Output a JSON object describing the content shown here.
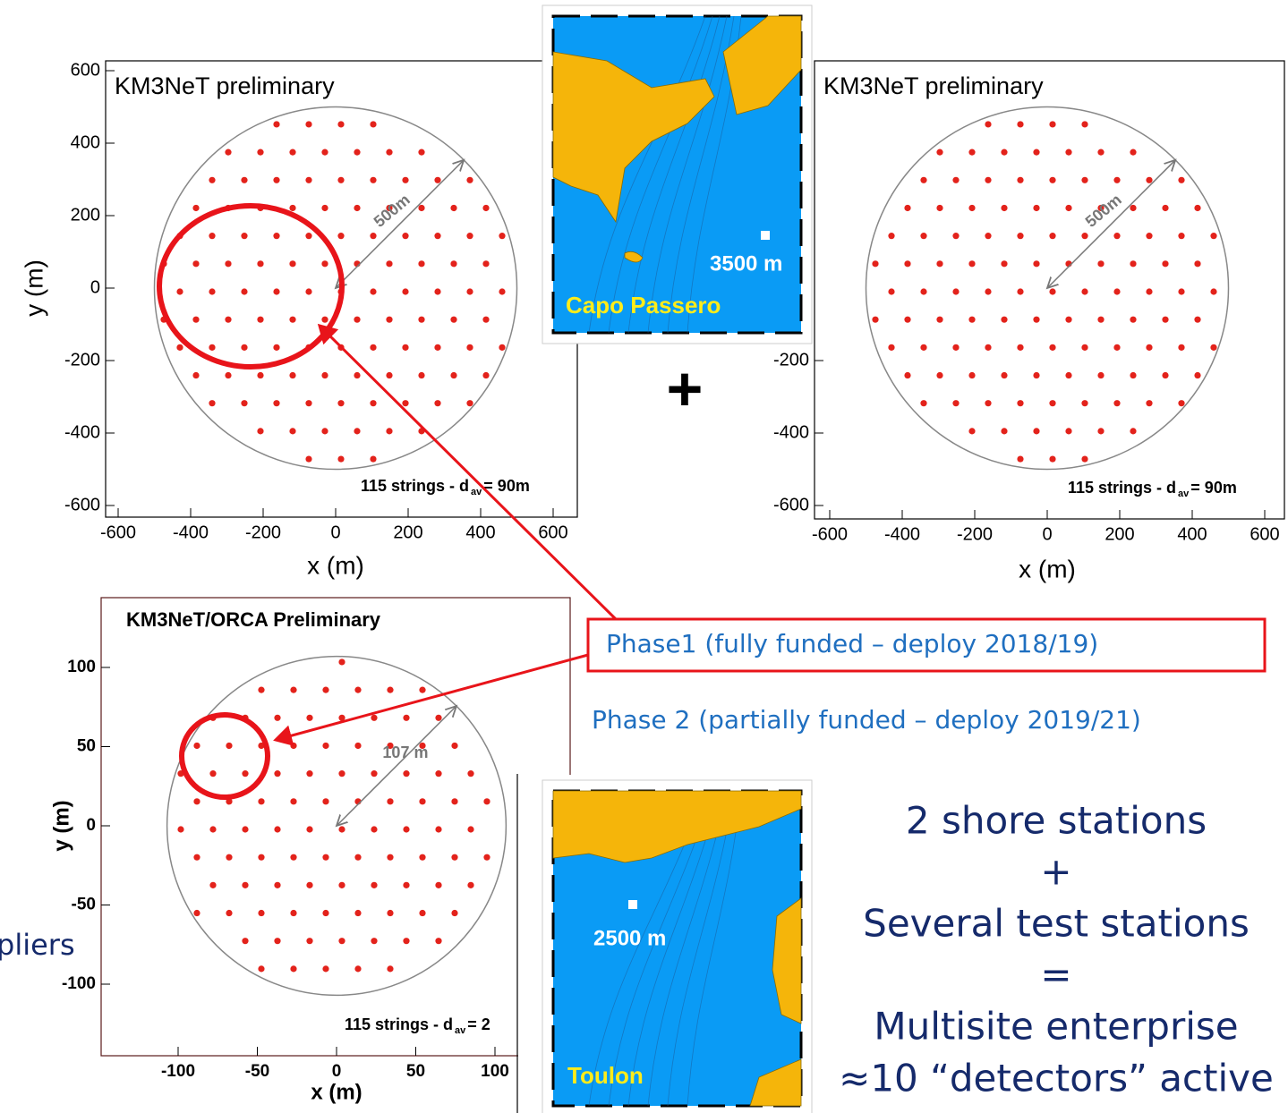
{
  "plots": [
    {
      "title": "KM3NeT preliminary",
      "y_label": "y (m)",
      "x_label": "x (m)",
      "yticks": [
        600,
        400,
        200,
        0,
        -200,
        -400,
        -600
      ],
      "xticks": [
        -600,
        -400,
        -200,
        0,
        200,
        400,
        600
      ],
      "radius_label": "500m",
      "footer": "115 strings - d",
      "footer_sub": "av",
      "footer_end": "= 90m"
    },
    {
      "title": "KM3NeT preliminary",
      "x_label": "x (m)",
      "yticks": [
        -200,
        -400,
        -600
      ],
      "xticks": [
        -600,
        -400,
        -200,
        0,
        200,
        400,
        600
      ],
      "radius_label": "500m",
      "footer": "115 strings - d",
      "footer_sub": "av",
      "footer_end": "= 90m"
    },
    {
      "title": "KM3NeT/ORCA Preliminary",
      "y_label": "y (m)",
      "x_label": "x (m)",
      "yticks": [
        100,
        50,
        0,
        -50,
        -100
      ],
      "xticks": [
        -100,
        -50,
        0,
        50,
        100
      ],
      "radius_label": "107 m",
      "footer": "115 strings - d",
      "footer_sub": "av",
      "footer_end": "= 2"
    }
  ],
  "maps": [
    {
      "depth": "3500 m",
      "site": "Capo Passero"
    },
    {
      "depth": "2500 m",
      "site": "Toulon"
    }
  ],
  "plus": "+",
  "phase1": "Phase1 (fully funded – deploy 2018/19)",
  "phase2": "Phase 2 (partially funded – deploy 2019/21)",
  "summary": [
    "2 shore stations",
    "+",
    "Several test stations",
    "=",
    "Multisite enterprise",
    "≈10 “detectors” active"
  ],
  "fragment": "pliers"
}
